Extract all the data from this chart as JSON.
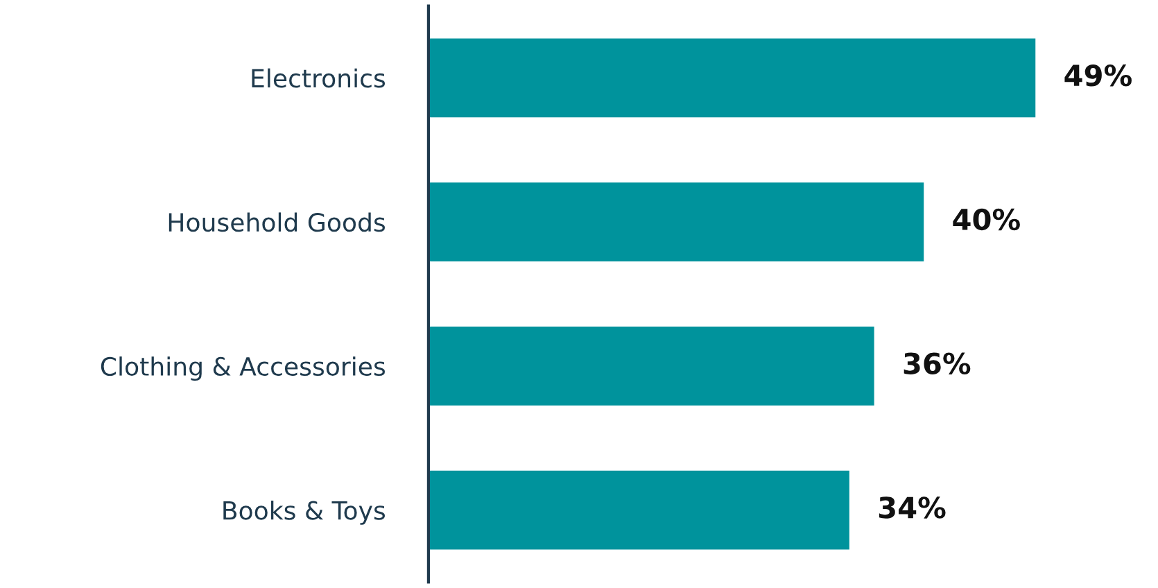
{
  "chart_data": {
    "type": "bar",
    "orientation": "horizontal",
    "categories": [
      "Electronics",
      "Household Goods",
      "Clothing & Accessories",
      "Books & Toys"
    ],
    "values": [
      49,
      40,
      36,
      34
    ],
    "color": "#00939c",
    "data_labels": true,
    "value_labels": [
      "49%",
      "40%",
      "36%",
      "34%"
    ],
    "grid": false,
    "legend": false
  }
}
